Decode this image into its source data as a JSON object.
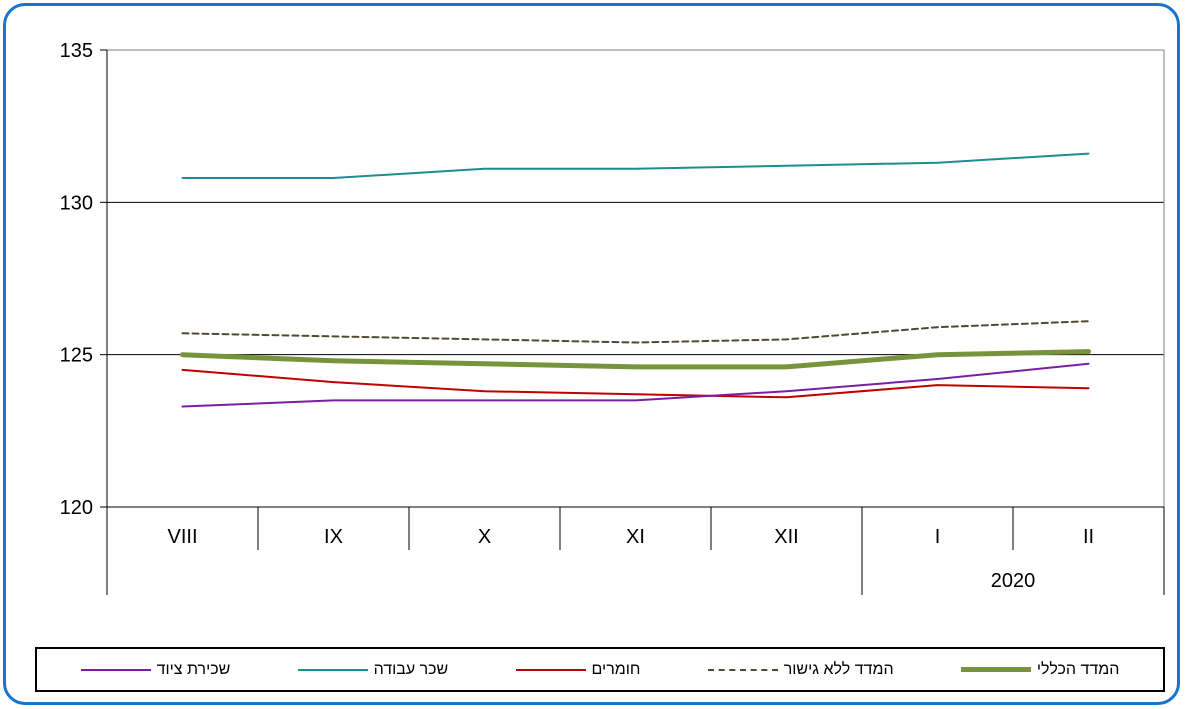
{
  "chart_data": {
    "type": "line",
    "categories": [
      "VIII",
      "IX",
      "X",
      "XI",
      "XII",
      "I",
      "II"
    ],
    "year_label": "2020",
    "ylim": [
      120,
      135
    ],
    "yticks": [
      120,
      125,
      130,
      135
    ],
    "grid": "horizontal",
    "legend_position": "bottom",
    "series": [
      {
        "name": "המדד הכללי",
        "color": "#77933c",
        "dash": "solid",
        "width": 5,
        "values": [
          125.0,
          124.8,
          124.7,
          124.6,
          124.6,
          125.0,
          125.1
        ]
      },
      {
        "name": "המדד ללא גישור",
        "color": "#4f4a32",
        "dash": "dashed",
        "width": 2,
        "values": [
          125.7,
          125.6,
          125.5,
          125.4,
          125.5,
          125.9,
          126.1
        ]
      },
      {
        "name": "חומרים",
        "color": "#c00000",
        "dash": "solid",
        "width": 2,
        "values": [
          124.5,
          124.1,
          123.8,
          123.7,
          123.6,
          124.0,
          123.9
        ]
      },
      {
        "name": "שכר עבודה",
        "color": "#1a8f8f",
        "dash": "solid",
        "width": 2,
        "values": [
          130.8,
          130.8,
          131.1,
          131.1,
          131.2,
          131.3,
          131.6
        ]
      },
      {
        "name": "שכירת ציוד",
        "color": "#7b1fa2",
        "dash": "solid",
        "width": 2,
        "values": [
          123.3,
          123.5,
          123.5,
          123.5,
          123.8,
          124.2,
          124.7
        ]
      }
    ]
  }
}
